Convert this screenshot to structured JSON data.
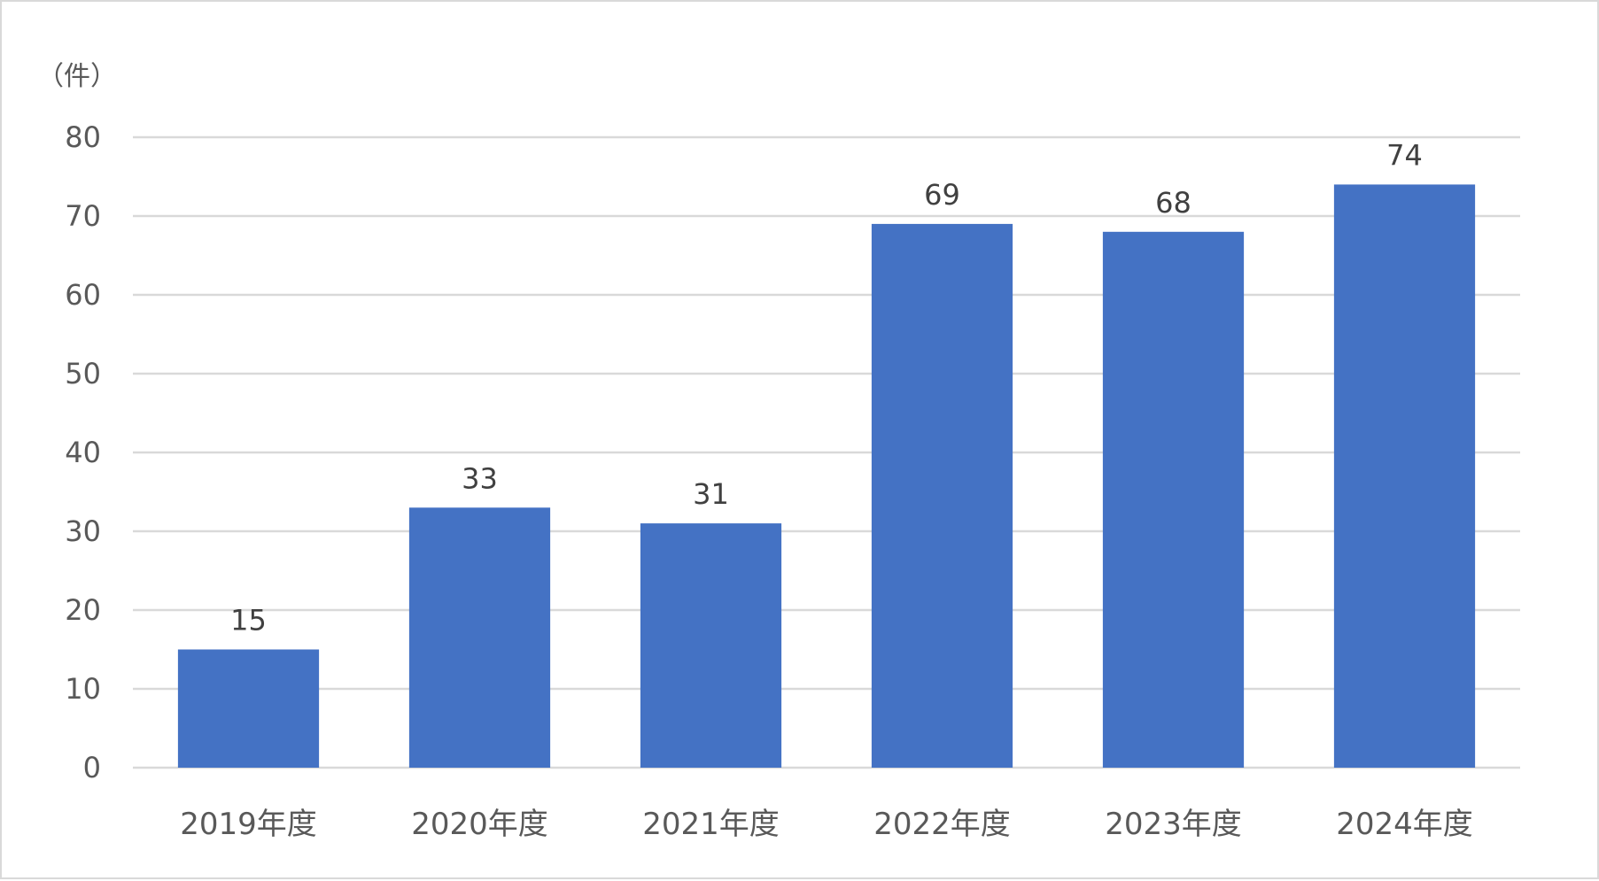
{
  "chart_data": {
    "type": "bar",
    "unit_label": "（件）",
    "categories": [
      "2019年度",
      "2020年度",
      "2021年度",
      "2022年度",
      "2023年度",
      "2024年度"
    ],
    "values": [
      15,
      33,
      31,
      69,
      68,
      74
    ],
    "data_labels": [
      "15",
      "33",
      "31",
      "69",
      "68",
      "74"
    ],
    "y_ticks": [
      0,
      10,
      20,
      30,
      40,
      50,
      60,
      70,
      80
    ],
    "ylim": [
      0,
      80
    ],
    "grid": true,
    "legend": "none",
    "colors": {
      "bar": "#4472c4",
      "grid": "#d9d9d9",
      "tick_text": "#595959",
      "data_label_text": "#404040",
      "border": "#d9d9d9"
    }
  }
}
